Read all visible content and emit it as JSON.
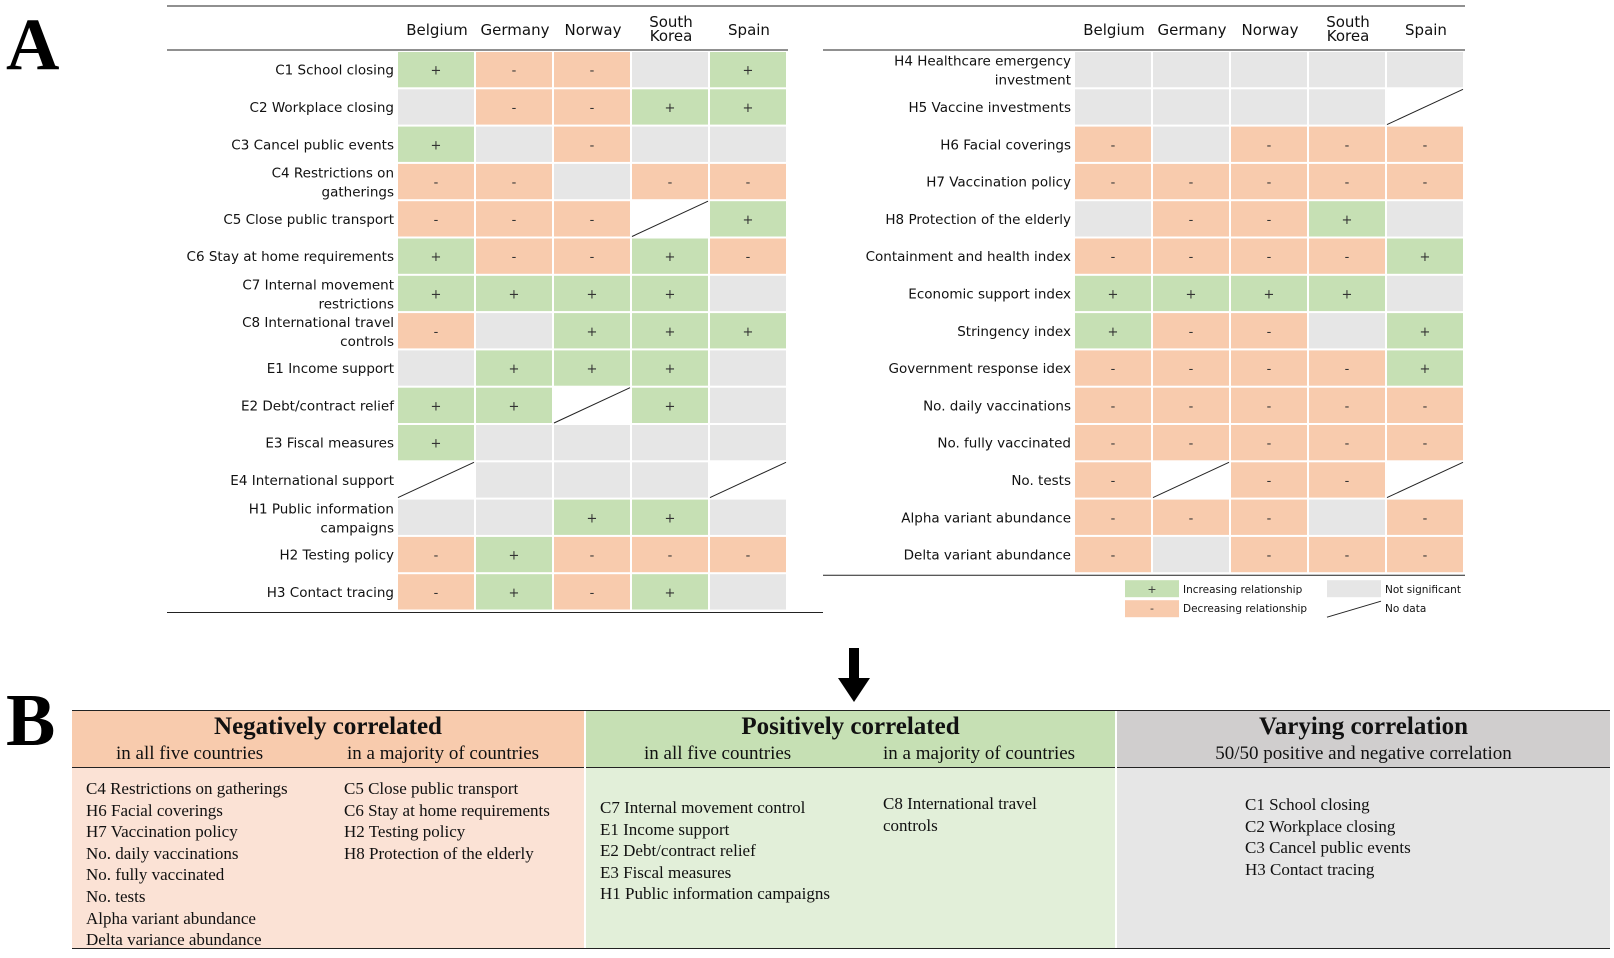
{
  "panel_letters": {
    "a": "A",
    "b": "B"
  },
  "countries": [
    "Belgium",
    "Germany",
    "Norway",
    "South Korea",
    "Spain"
  ],
  "colors": {
    "positive": "#c6e0b4",
    "negative": "#f8cbad",
    "not_significant": "#e6e6e6",
    "no_data": "#ffffff"
  },
  "left_table": {
    "rows": [
      {
        "label": "C1 School closing",
        "cells": [
          "+",
          "-",
          "-",
          "ns",
          "+"
        ]
      },
      {
        "label": "C2 Workplace closing",
        "cells": [
          "ns",
          "-",
          "-",
          "+",
          "+"
        ]
      },
      {
        "label": "C3 Cancel public events",
        "cells": [
          "+",
          "ns",
          "-",
          "ns",
          "ns"
        ]
      },
      {
        "label": "C4 Restrictions on gatherings",
        "cells": [
          "-",
          "-",
          "ns",
          "-",
          "-"
        ]
      },
      {
        "label": "C5 Close public transport",
        "cells": [
          "-",
          "-",
          "-",
          "nd",
          "+"
        ]
      },
      {
        "label": "C6 Stay at home requirements",
        "cells": [
          "+",
          "-",
          "-",
          "+",
          "-"
        ]
      },
      {
        "label": "C7 Internal movement restrictions",
        "cells": [
          "+",
          "+",
          "+",
          "+",
          "ns"
        ]
      },
      {
        "label": "C8 International travel controls",
        "cells": [
          "-",
          "ns",
          "+",
          "+",
          "+"
        ]
      },
      {
        "label": "E1 Income support",
        "cells": [
          "ns",
          "+",
          "+",
          "+",
          "ns"
        ]
      },
      {
        "label": "E2 Debt/contract relief",
        "cells": [
          "+",
          "+",
          "nd",
          "+",
          "ns"
        ]
      },
      {
        "label": "E3 Fiscal measures",
        "cells": [
          "+",
          "ns",
          "ns",
          "ns",
          "ns"
        ]
      },
      {
        "label": "E4 International support",
        "cells": [
          "nd",
          "ns",
          "ns",
          "ns",
          "nd"
        ]
      },
      {
        "label": "H1 Public information campaigns",
        "cells": [
          "ns",
          "ns",
          "+",
          "+",
          "ns"
        ]
      },
      {
        "label": "H2 Testing policy",
        "cells": [
          "-",
          "+",
          "-",
          "-",
          "-"
        ]
      },
      {
        "label": "H3 Contact tracing",
        "cells": [
          "-",
          "+",
          "-",
          "+",
          "ns"
        ]
      }
    ]
  },
  "right_table": {
    "rows": [
      {
        "label": "H4 Healthcare emergency investment",
        "cells": [
          "ns",
          "ns",
          "ns",
          "ns",
          "ns"
        ]
      },
      {
        "label": "H5 Vaccine investments",
        "cells": [
          "ns",
          "ns",
          "ns",
          "ns",
          "nd"
        ]
      },
      {
        "label": "H6 Facial coverings",
        "cells": [
          "-",
          "ns",
          "-",
          "-",
          "-"
        ]
      },
      {
        "label": "H7 Vaccination policy",
        "cells": [
          "-",
          "-",
          "-",
          "-",
          "-"
        ]
      },
      {
        "label": "H8 Protection of the elderly",
        "cells": [
          "ns",
          "-",
          "-",
          "+",
          "ns"
        ]
      },
      {
        "label": "Containment and health index",
        "cells": [
          "-",
          "-",
          "-",
          "-",
          "+"
        ]
      },
      {
        "label": "Economic support index",
        "cells": [
          "+",
          "+",
          "+",
          "+",
          "ns"
        ]
      },
      {
        "label": "Stringency index",
        "cells": [
          "+",
          "-",
          "-",
          "ns",
          "+"
        ]
      },
      {
        "label": "Government response idex",
        "cells": [
          "-",
          "-",
          "-",
          "-",
          "+"
        ]
      },
      {
        "label": "No. daily vaccinations",
        "cells": [
          "-",
          "-",
          "-",
          "-",
          "-"
        ]
      },
      {
        "label": "No. fully vaccinated",
        "cells": [
          "-",
          "-",
          "-",
          "-",
          "-"
        ]
      },
      {
        "label": "No. tests",
        "cells": [
          "-",
          "nd",
          "-",
          "-",
          "nd"
        ]
      },
      {
        "label": "Alpha variant abundance",
        "cells": [
          "-",
          "-",
          "-",
          "ns",
          "-"
        ]
      },
      {
        "label": "Delta variant abundance",
        "cells": [
          "-",
          "ns",
          "-",
          "-",
          "-"
        ]
      }
    ]
  },
  "legend": {
    "increasing": {
      "symbol": "+",
      "label": "Increasing relationship"
    },
    "decreasing": {
      "symbol": "-",
      "label": "Decreasing relationship"
    },
    "not_significant": {
      "label": "Not significant"
    },
    "no_data": {
      "label": "No data"
    }
  },
  "arrow": {
    "icon": "arrow-down-icon"
  },
  "summary": {
    "negative": {
      "title": "Negatively correlated",
      "sub_all": "in all five countries",
      "sub_majority": "in a majority of countries",
      "all_items": [
        "C4 Restrictions on gatherings",
        "H6 Facial coverings",
        "H7 Vaccination policy",
        "No. daily vaccinations",
        "No. fully vaccinated",
        "No. tests",
        "Alpha variant abundance",
        "Delta variance abundance"
      ],
      "majority_items": [
        "C5 Close public transport",
        "C6 Stay at home requirements",
        "H2 Testing policy",
        "H8 Protection of the elderly"
      ]
    },
    "positive": {
      "title": "Positively correlated",
      "sub_all": "in all five countries",
      "sub_majority": "in a majority of countries",
      "all_items": [
        "C7 Internal movement control",
        "E1 Income support",
        "E2 Debt/contract relief",
        "E3 Fiscal measures",
        "H1 Public information campaigns"
      ],
      "majority_items": [
        "C8 International travel",
        "controls"
      ]
    },
    "varying": {
      "title": "Varying correlation",
      "sub": "50/50 positive and negative correlation",
      "items": [
        "C1 School closing",
        "C2 Workplace closing",
        "C3 Cancel public events",
        "H3 Contact tracing"
      ]
    }
  }
}
